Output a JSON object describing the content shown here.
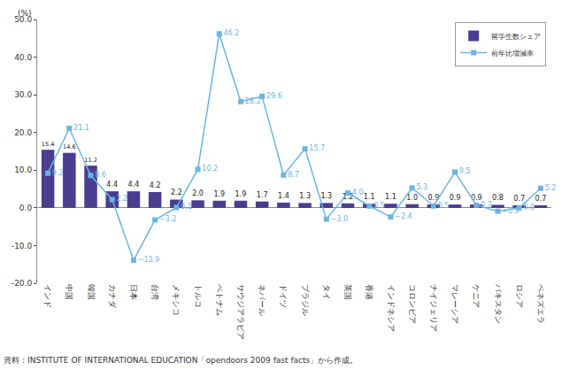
{
  "chart_data": {
    "type": "bar",
    "ylabel": "(%)",
    "annotations": [
      "資料：INSTITUTE OF INTERNATIONAL EDUCATION「opendoors 2009 fast facts」から作成。"
    ],
    "categories": [
      "インド",
      "中国",
      "韓国",
      "カナダ",
      "日本",
      "台湾",
      "メキシコ",
      "トルコ",
      "ベトナム",
      "サウジアラビア",
      "ネパール",
      "ドイツ",
      "ブラジル",
      "タイ",
      "英国",
      "香港",
      "インドネシア",
      "コロンビア",
      "ナイジェリア",
      "マレーシア",
      "ケニア",
      "パキスタン",
      "ロシア",
      "ベネズエラ"
    ],
    "series": [
      {
        "name": "留学生数シェア",
        "type": "bar",
        "color": "#4a3d8f",
        "values": [
          15.4,
          14.6,
          11.2,
          4.4,
          4.4,
          4.2,
          2.2,
          2.0,
          1.9,
          1.9,
          1.7,
          1.4,
          1.3,
          1.3,
          1.2,
          1.1,
          1.1,
          1.0,
          0.9,
          0.9,
          0.9,
          0.8,
          0.7,
          0.7
        ],
        "value_labels": [
          "15.4",
          "14.6",
          "11.2",
          "4.4",
          "4.4",
          "4.2",
          "2.2",
          "2.0",
          "1.9",
          "1.9",
          "1.7",
          "1.4",
          "1.3",
          "1.3",
          "1.2",
          "1.1",
          "1.1",
          "1.0",
          "0.9",
          "0.9",
          "0.9",
          "0.8",
          "0.7",
          "0.7"
        ]
      },
      {
        "name": "前年比増減率",
        "type": "line",
        "color": "#6cb4e4",
        "marker": "square",
        "line_style": "solid",
        "values": [
          9.2,
          21.1,
          8.6,
          2.2,
          -13.9,
          -3.2,
          0.1,
          10.2,
          46.2,
          28.2,
          29.6,
          8.7,
          15.7,
          -3.0,
          4.0,
          0.5,
          -2.4,
          5.3,
          0.5,
          9.5,
          0.7,
          -0.9,
          0.0,
          5.2
        ],
        "value_labels": [
          "9.2",
          "21.1",
          "8.6",
          "2.2",
          "−13.9",
          "−3.2",
          "0.1",
          "10.2",
          "46.2",
          "28.2",
          "29.6",
          "8.7",
          "15.7",
          "−3.0",
          "4.0",
          "0.5",
          "−2.4",
          "5.3",
          "0.5",
          "9.5",
          "0.7",
          "−0.9",
          "0.0",
          "5.2"
        ]
      }
    ],
    "ylim": [
      -20,
      50
    ],
    "yticks": [
      {
        "value": -20,
        "label": "-20.0"
      },
      {
        "value": -10,
        "label": "-10.0"
      },
      {
        "value": 0,
        "label": "0.0"
      },
      {
        "value": 10,
        "label": "10.0"
      },
      {
        "value": 20,
        "label": "20.0"
      },
      {
        "value": 30,
        "label": "30.0"
      },
      {
        "value": 40,
        "label": "40.0"
      },
      {
        "value": 50,
        "label": "50.0"
      }
    ],
    "grid": false,
    "legend": "upper right",
    "data_labels": true
  }
}
